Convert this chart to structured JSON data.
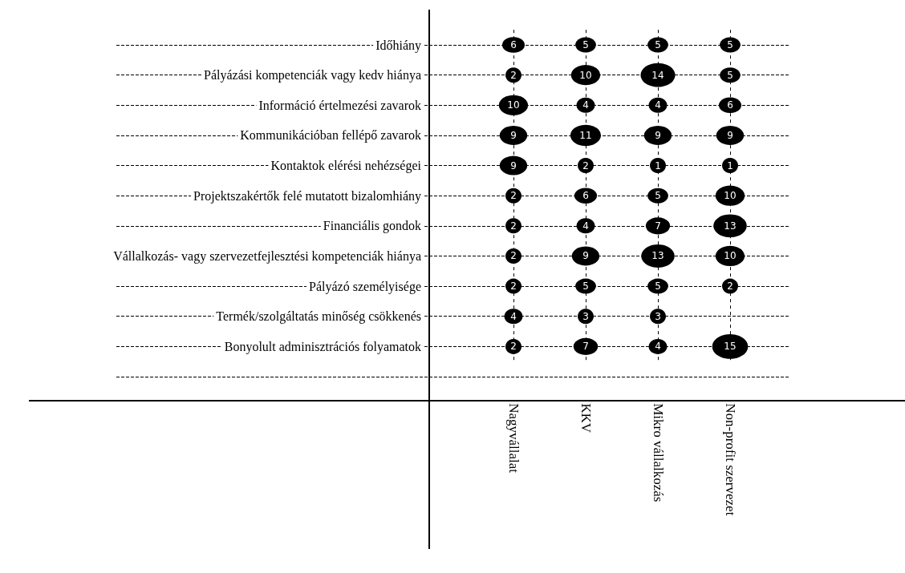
{
  "chart_data": {
    "type": "heatmap",
    "categories": [
      "Nagyvállalat",
      "KKV",
      "Mikro vállalkozás",
      "Non-profit szervezet"
    ],
    "y_categories": [
      "Időhiány",
      "Pályázási kompetenciák vagy kedv hiánya",
      "Információ értelmezési zavarok",
      "Kommunikációban fellépő zavarok",
      "Kontaktok elérési nehézségei",
      "Projektszakértők felé mutatott bizalomhiány",
      "Financiális gondok",
      "Vállalkozás- vagy szervezetfejlesztési kompetenciák hiánya",
      "Pályázó személyisége",
      "Termék/szolgáltatás minőség csökkenés",
      "Bonyolult adminisztrációs folyamatok"
    ],
    "cells": [
      [
        6,
        5,
        5,
        5
      ],
      [
        2,
        10,
        14,
        5
      ],
      [
        10,
        4,
        4,
        6
      ],
      [
        9,
        11,
        9,
        9
      ],
      [
        9,
        2,
        1,
        1
      ],
      [
        2,
        6,
        5,
        10
      ],
      [
        2,
        4,
        7,
        13
      ],
      [
        2,
        9,
        13,
        10
      ],
      [
        2,
        5,
        5,
        2
      ],
      [
        4,
        3,
        3,
        null
      ],
      [
        2,
        7,
        4,
        15
      ]
    ],
    "color": "#000000",
    "grid": true,
    "data_labels": true
  }
}
